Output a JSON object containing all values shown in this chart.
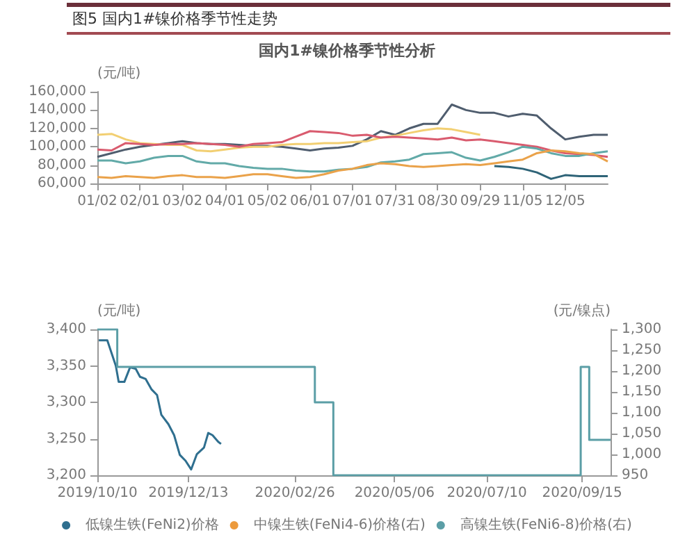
{
  "chart_data": [
    {
      "type": "line",
      "title": "国内1#镍价格季节性分析",
      "ylabel": "(元/吨)",
      "annotations": [
        "图5 国内1#镍价格季节性走势"
      ],
      "legend": false,
      "grid": false,
      "marker": "none",
      "line_style": "solid",
      "categories": [
        "01/02",
        null,
        null,
        "02/01",
        null,
        null,
        "03/02",
        null,
        null,
        "04/01",
        null,
        null,
        "05/02",
        null,
        null,
        "06/01",
        null,
        null,
        "07/01",
        null,
        null,
        "07/31",
        null,
        null,
        "08/30",
        null,
        null,
        "09/29",
        null,
        null,
        "11/05",
        null,
        null,
        "12/05",
        null,
        null,
        null
      ],
      "ylim": [
        60000,
        160000
      ],
      "yticks": [
        {
          "value": 60000,
          "label": "60,000"
        },
        {
          "value": 80000,
          "label": "80,000"
        },
        {
          "value": 100000,
          "label": "100,000"
        },
        {
          "value": 120000,
          "label": "120,000"
        },
        {
          "value": 140000,
          "label": "140,000"
        },
        {
          "value": 160000,
          "label": "160,000"
        }
      ],
      "series": [
        {
          "color": "#4f5d6e",
          "values": [
            89000,
            93000,
            97000,
            100000,
            102000,
            104000,
            106000,
            104000,
            103000,
            103000,
            102000,
            101000,
            101000,
            100000,
            98000,
            96000,
            98000,
            99000,
            101000,
            108000,
            117000,
            113000,
            120000,
            125000,
            125000,
            146000,
            140000,
            137000,
            137000,
            133000,
            136000,
            134000,
            120000,
            108000,
            111000,
            113000,
            113000
          ]
        },
        {
          "color": "#f2cf72",
          "values": [
            113000,
            114000,
            108000,
            104000,
            103000,
            102000,
            102000,
            96000,
            95000,
            97000,
            99000,
            100000,
            100000,
            102000,
            103000,
            103000,
            104000,
            104000,
            105000,
            106000,
            110000,
            112000,
            115000,
            118000,
            120000,
            119000,
            116000,
            113000,
            null,
            null,
            null,
            null,
            null,
            null,
            null,
            null,
            null
          ]
        },
        {
          "color": "#d95b6e",
          "values": [
            97000,
            96000,
            104000,
            103000,
            102000,
            103000,
            103000,
            104000,
            103000,
            102000,
            100000,
            103000,
            104000,
            105000,
            111000,
            117000,
            116000,
            115000,
            112000,
            113000,
            110000,
            111000,
            110000,
            109000,
            108000,
            110000,
            107000,
            108000,
            106000,
            104000,
            102000,
            100000,
            96000,
            93000,
            92000,
            91000,
            89000
          ]
        },
        {
          "color": "#62aaa8",
          "values": [
            85000,
            85000,
            82000,
            84000,
            88000,
            90000,
            90000,
            84000,
            82000,
            82000,
            79000,
            77000,
            76000,
            76000,
            74000,
            73000,
            73000,
            75000,
            76000,
            78000,
            83000,
            84000,
            86000,
            92000,
            93000,
            94000,
            88000,
            85000,
            89000,
            94000,
            100000,
            98000,
            93000,
            90000,
            90000,
            93000,
            95000
          ]
        },
        {
          "color": "#eaa24a",
          "values": [
            67000,
            66000,
            68000,
            67000,
            66000,
            68000,
            69000,
            67000,
            67000,
            66000,
            68000,
            70000,
            70000,
            68000,
            66000,
            67000,
            70000,
            74000,
            76000,
            80000,
            82000,
            81000,
            79000,
            78000,
            79000,
            80000,
            81000,
            80000,
            82000,
            84000,
            86000,
            93000,
            96000,
            95000,
            93000,
            92000,
            84000
          ]
        },
        {
          "color": "#2f6478",
          "values": [
            null,
            null,
            null,
            null,
            null,
            null,
            null,
            null,
            null,
            null,
            null,
            null,
            null,
            null,
            null,
            null,
            null,
            null,
            null,
            null,
            null,
            null,
            null,
            null,
            null,
            null,
            null,
            null,
            79000,
            78000,
            76000,
            72000,
            65000,
            69000,
            68000,
            68000,
            68000
          ]
        }
      ]
    },
    {
      "type": "line",
      "ylabel": "(元/吨)",
      "y2label": "(元/镍点)",
      "legend": "bottom",
      "grid": false,
      "marker": "none",
      "line_style": "solid",
      "xlim": [
        "2019-10-10",
        "2020-10-05"
      ],
      "xticks": [
        {
          "value": "2019-10-10",
          "label": "2019/10/10"
        },
        {
          "value": "2019-12-13",
          "label": "2019/12/13"
        },
        {
          "value": "2020-02-26",
          "label": "2020/02/26"
        },
        {
          "value": "2020-05-06",
          "label": "2020/05/06"
        },
        {
          "value": "2020-07-10",
          "label": "2020/07/10"
        },
        {
          "value": "2020-09-15",
          "label": "2020/09/15"
        }
      ],
      "ylim": [
        3200,
        3400
      ],
      "yticks": [
        {
          "value": 3200,
          "label": "3,200"
        },
        {
          "value": 3250,
          "label": "3,250"
        },
        {
          "value": 3300,
          "label": "3,300"
        },
        {
          "value": 3350,
          "label": "3,350"
        },
        {
          "value": 3400,
          "label": "3,400"
        }
      ],
      "y2lim": [
        950,
        1300
      ],
      "y2ticks": [
        950,
        {
          "value": 1000,
          "label": "1,000"
        },
        {
          "value": 1050,
          "label": "1,050"
        },
        {
          "value": 1100,
          "label": "1,100"
        },
        {
          "value": 1150,
          "label": "1,150"
        },
        {
          "value": 1200,
          "label": "1,200"
        },
        {
          "value": 1250,
          "label": "1,250"
        },
        {
          "value": 1300,
          "label": "1,300"
        }
      ],
      "series": [
        {
          "name": "低镍生铁(FeNi2)价格",
          "color": "#2f6f8f",
          "x": [
            "2019-10-11",
            "2019-10-17",
            "2019-10-23",
            "2019-10-25",
            "2019-10-29",
            "2019-11-02",
            "2019-11-06",
            "2019-11-09",
            "2019-11-13",
            "2019-11-17",
            "2019-11-21",
            "2019-11-24",
            "2019-11-29",
            "2019-12-03",
            "2019-12-07",
            "2019-12-11",
            "2019-12-15",
            "2019-12-19",
            "2019-12-24",
            "2019-12-27",
            "2019-12-30",
            "2020-01-03",
            "2020-01-05"
          ],
          "values": [
            3385,
            3385,
            3350,
            3328,
            3328,
            3348,
            3346,
            3335,
            3332,
            3318,
            3310,
            3283,
            3270,
            3255,
            3228,
            3220,
            3208,
            3229,
            3238,
            3258,
            3255,
            3246,
            3243
          ]
        },
        {
          "name": "中镍生铁(FeNi4-6)价格(右)",
          "color": "#ec9a3c",
          "axis": "y2"
        },
        {
          "name": "高镍生铁(FeNi6-8)价格(右)",
          "type": "step",
          "color": "#5b9ea6",
          "axis": "y2",
          "x": [
            "2019-10-10",
            "2019-10-24",
            "2020-03-11",
            "2020-03-24",
            "2020-09-14",
            "2020-09-20",
            "2020-10-05"
          ],
          "values": [
            1300,
            1210,
            1125,
            950,
            1210,
            1035,
            1035
          ]
        }
      ]
    }
  ]
}
